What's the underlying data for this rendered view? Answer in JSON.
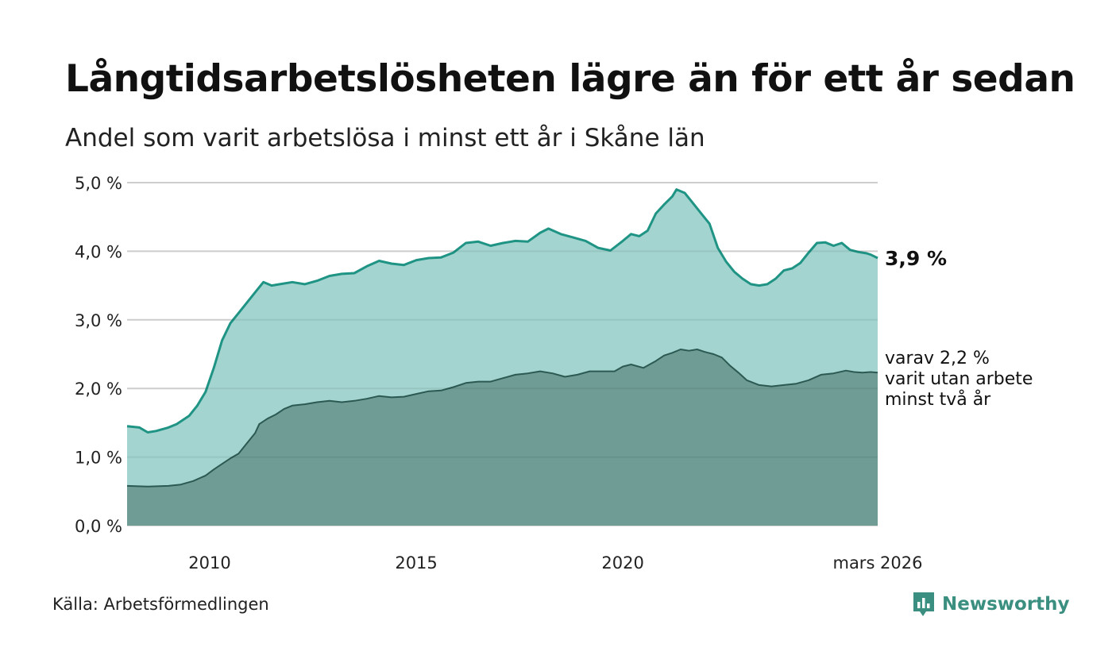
{
  "header": {
    "title": "Långtidsarbetslösheten lägre än för ett år sedan",
    "subtitle": "Andel som varit arbetslösa i minst ett år i Skåne län"
  },
  "footer": {
    "source": "Källa: Arbetsförmedlingen",
    "brand": "Newsworthy"
  },
  "colors": {
    "upper_fill": "#a3d4cf",
    "upper_line": "#1f9485",
    "lower_fill": "#6f9d96",
    "lower_line": "#2c5a53",
    "grid": "#dddddd"
  },
  "chart_data": {
    "type": "area",
    "title": "Långtidsarbetslösheten lägre än för ett år sedan",
    "subtitle": "Andel som varit arbetslösa i minst ett år i Skåne län",
    "xlabel": "",
    "ylabel": "",
    "x_unit": "year (decimal)",
    "xlim": [
      2008.0,
      2026.17
    ],
    "ylim": [
      0,
      5
    ],
    "y_ticks": [
      0,
      1,
      2,
      3,
      4,
      5
    ],
    "y_tick_labels": [
      "0,0 %",
      "1,0 %",
      "2,0 %",
      "3,0 %",
      "4,0 %",
      "5,0 %"
    ],
    "x_ticks": [
      2010,
      2015,
      2020,
      2026.17
    ],
    "x_tick_labels": [
      "2010",
      "2015",
      "2020",
      "mars 2026"
    ],
    "grid": true,
    "series": [
      {
        "name": "Arbetslösa minst ett år",
        "end_label": "3,9 %",
        "points": [
          [
            2008.0,
            1.45
          ],
          [
            2008.3,
            1.43
          ],
          [
            2008.5,
            1.36
          ],
          [
            2008.7,
            1.38
          ],
          [
            2009.0,
            1.43
          ],
          [
            2009.2,
            1.48
          ],
          [
            2009.5,
            1.6
          ],
          [
            2009.7,
            1.75
          ],
          [
            2009.9,
            1.95
          ],
          [
            2010.1,
            2.3
          ],
          [
            2010.3,
            2.7
          ],
          [
            2010.5,
            2.95
          ],
          [
            2010.7,
            3.1
          ],
          [
            2010.9,
            3.25
          ],
          [
            2011.1,
            3.4
          ],
          [
            2011.3,
            3.55
          ],
          [
            2011.5,
            3.5
          ],
          [
            2011.7,
            3.52
          ],
          [
            2012.0,
            3.55
          ],
          [
            2012.3,
            3.52
          ],
          [
            2012.6,
            3.57
          ],
          [
            2012.9,
            3.64
          ],
          [
            2013.2,
            3.67
          ],
          [
            2013.5,
            3.68
          ],
          [
            2013.8,
            3.78
          ],
          [
            2014.1,
            3.86
          ],
          [
            2014.4,
            3.82
          ],
          [
            2014.7,
            3.8
          ],
          [
            2015.0,
            3.87
          ],
          [
            2015.3,
            3.9
          ],
          [
            2015.6,
            3.91
          ],
          [
            2015.9,
            3.98
          ],
          [
            2016.2,
            4.12
          ],
          [
            2016.5,
            4.14
          ],
          [
            2016.8,
            4.08
          ],
          [
            2017.1,
            4.12
          ],
          [
            2017.4,
            4.15
          ],
          [
            2017.7,
            4.14
          ],
          [
            2018.0,
            4.27
          ],
          [
            2018.2,
            4.33
          ],
          [
            2018.5,
            4.25
          ],
          [
            2018.8,
            4.2
          ],
          [
            2019.1,
            4.15
          ],
          [
            2019.4,
            4.05
          ],
          [
            2019.7,
            4.01
          ],
          [
            2020.0,
            4.15
          ],
          [
            2020.2,
            4.25
          ],
          [
            2020.4,
            4.22
          ],
          [
            2020.6,
            4.3
          ],
          [
            2020.8,
            4.55
          ],
          [
            2021.0,
            4.68
          ],
          [
            2021.2,
            4.8
          ],
          [
            2021.3,
            4.9
          ],
          [
            2021.5,
            4.85
          ],
          [
            2021.7,
            4.7
          ],
          [
            2021.9,
            4.55
          ],
          [
            2022.1,
            4.4
          ],
          [
            2022.3,
            4.05
          ],
          [
            2022.5,
            3.85
          ],
          [
            2022.7,
            3.7
          ],
          [
            2022.9,
            3.6
          ],
          [
            2023.1,
            3.52
          ],
          [
            2023.3,
            3.5
          ],
          [
            2023.5,
            3.52
          ],
          [
            2023.7,
            3.6
          ],
          [
            2023.9,
            3.72
          ],
          [
            2024.1,
            3.75
          ],
          [
            2024.3,
            3.83
          ],
          [
            2024.5,
            3.98
          ],
          [
            2024.7,
            4.12
          ],
          [
            2024.9,
            4.13
          ],
          [
            2025.1,
            4.08
          ],
          [
            2025.3,
            4.12
          ],
          [
            2025.5,
            4.02
          ],
          [
            2025.7,
            3.99
          ],
          [
            2025.9,
            3.97
          ],
          [
            2026.0,
            3.95
          ],
          [
            2026.17,
            3.9
          ]
        ]
      },
      {
        "name": "varav minst två år",
        "end_label": [
          "varav 2,2 %",
          "varit utan arbete",
          "minst två år"
        ],
        "points": [
          [
            2008.0,
            0.58
          ],
          [
            2008.5,
            0.57
          ],
          [
            2009.0,
            0.58
          ],
          [
            2009.3,
            0.6
          ],
          [
            2009.6,
            0.65
          ],
          [
            2009.9,
            0.73
          ],
          [
            2010.1,
            0.82
          ],
          [
            2010.3,
            0.9
          ],
          [
            2010.5,
            0.98
          ],
          [
            2010.7,
            1.05
          ],
          [
            2010.9,
            1.2
          ],
          [
            2011.1,
            1.35
          ],
          [
            2011.2,
            1.48
          ],
          [
            2011.4,
            1.56
          ],
          [
            2011.6,
            1.62
          ],
          [
            2011.8,
            1.7
          ],
          [
            2012.0,
            1.75
          ],
          [
            2012.3,
            1.77
          ],
          [
            2012.6,
            1.8
          ],
          [
            2012.9,
            1.82
          ],
          [
            2013.2,
            1.8
          ],
          [
            2013.5,
            1.82
          ],
          [
            2013.8,
            1.85
          ],
          [
            2014.1,
            1.89
          ],
          [
            2014.4,
            1.87
          ],
          [
            2014.7,
            1.88
          ],
          [
            2015.0,
            1.92
          ],
          [
            2015.3,
            1.96
          ],
          [
            2015.6,
            1.97
          ],
          [
            2015.9,
            2.02
          ],
          [
            2016.2,
            2.08
          ],
          [
            2016.5,
            2.1
          ],
          [
            2016.8,
            2.1
          ],
          [
            2017.1,
            2.15
          ],
          [
            2017.4,
            2.2
          ],
          [
            2017.7,
            2.22
          ],
          [
            2018.0,
            2.25
          ],
          [
            2018.3,
            2.22
          ],
          [
            2018.6,
            2.17
          ],
          [
            2018.9,
            2.2
          ],
          [
            2019.2,
            2.25
          ],
          [
            2019.5,
            2.25
          ],
          [
            2019.8,
            2.25
          ],
          [
            2020.0,
            2.32
          ],
          [
            2020.2,
            2.35
          ],
          [
            2020.5,
            2.3
          ],
          [
            2020.8,
            2.4
          ],
          [
            2021.0,
            2.48
          ],
          [
            2021.2,
            2.52
          ],
          [
            2021.4,
            2.57
          ],
          [
            2021.6,
            2.55
          ],
          [
            2021.8,
            2.57
          ],
          [
            2022.0,
            2.53
          ],
          [
            2022.2,
            2.5
          ],
          [
            2022.4,
            2.45
          ],
          [
            2022.6,
            2.33
          ],
          [
            2022.8,
            2.23
          ],
          [
            2023.0,
            2.12
          ],
          [
            2023.3,
            2.05
          ],
          [
            2023.6,
            2.03
          ],
          [
            2023.9,
            2.05
          ],
          [
            2024.2,
            2.07
          ],
          [
            2024.5,
            2.12
          ],
          [
            2024.8,
            2.2
          ],
          [
            2025.1,
            2.22
          ],
          [
            2025.4,
            2.26
          ],
          [
            2025.6,
            2.24
          ],
          [
            2025.8,
            2.23
          ],
          [
            2026.0,
            2.24
          ],
          [
            2026.17,
            2.23
          ]
        ]
      }
    ]
  }
}
